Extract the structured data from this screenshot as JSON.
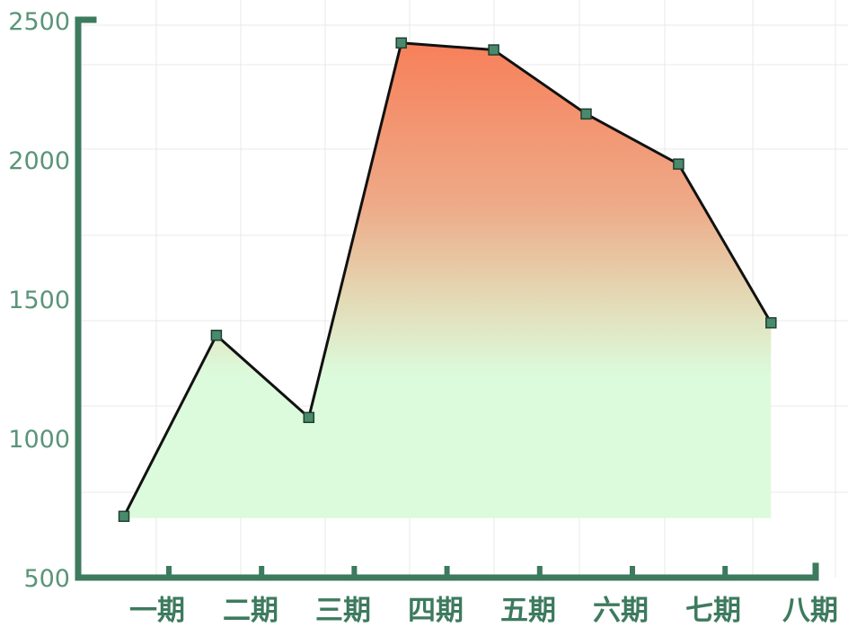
{
  "chart_data": {
    "type": "area",
    "categories": [
      "一期",
      "二期",
      "三期",
      "四期",
      "五期",
      "六期",
      "七期",
      "八期"
    ],
    "series": [
      {
        "values": [
          720,
          1370,
          1075,
          2420,
          2395,
          2165,
          1985,
          1415
        ]
      }
    ],
    "ylim": [
      500,
      2500
    ],
    "y_ticks": [
      "500",
      "1000",
      "1500",
      "2000",
      "2500"
    ],
    "grid": true,
    "colors": {
      "axis": "#3d7a5e",
      "y_tick_text": "#5a9478",
      "x_tick_text": "#3d7a5e",
      "line": "#111111",
      "marker": "#4a8a6c",
      "gradient_top": "#f7805a",
      "gradient_bottom": "#dcfbdc"
    }
  }
}
